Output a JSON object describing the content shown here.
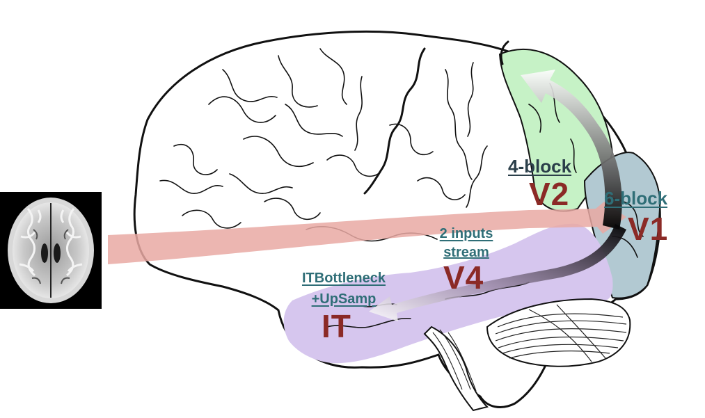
{
  "colors": {
    "region_label": "#8b2a26",
    "block_label_teal": "#2f6e77",
    "block_label_dark": "#2b3f4a",
    "v1_fill": "#b2c9d2",
    "v2_fill": "#c6f2c6",
    "ventral_fill": "#d6c6ee",
    "stream_arrow": "#e9a9a3",
    "outline": "#111111"
  },
  "input_image": {
    "icon": "mri-axial-brain-slice"
  },
  "regions": {
    "v1": {
      "block": "6-block",
      "name": "V1"
    },
    "v2": {
      "block": "4-block",
      "name": "V2"
    },
    "v4": {
      "block_line1": "2 inputs",
      "block_line2": "stream",
      "name": "V4"
    },
    "it": {
      "block_line1": "ITBottleneck",
      "block_line2": "+UpSamp",
      "name": "IT"
    }
  },
  "icons": {
    "brain": "brain-outline-icon",
    "stream": "stream-arrow-icon",
    "dorsal": "dorsal-arrow-icon",
    "ventral": "ventral-arrow-icon"
  }
}
